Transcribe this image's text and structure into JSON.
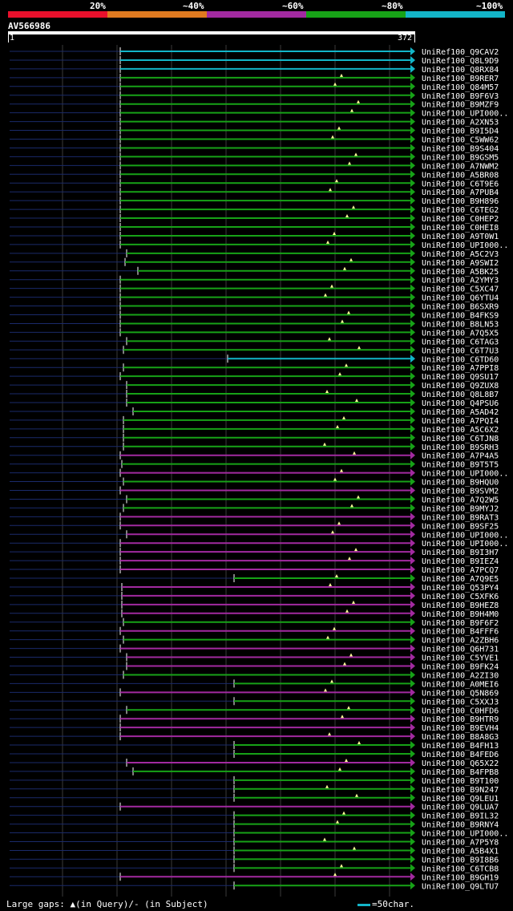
{
  "legend": [
    {
      "label": "20%",
      "color": "#e8102c"
    },
    {
      "label": "~40%",
      "color": "#e07a20"
    },
    {
      "label": "~60%",
      "color": "#a22aa0"
    },
    {
      "label": "~80%",
      "color": "#17a217"
    },
    {
      "label": "~100%",
      "color": "#13b5c8"
    }
  ],
  "query": {
    "name": "AV566986",
    "start": "1",
    "end": "372"
  },
  "colors": {
    "teal": "#13b5c8",
    "green": "#17a217",
    "purple": "#a22aa0",
    "navy": "#1a2a6a",
    "tri": "#ffff99",
    "grid": "#3a3a3a"
  },
  "footer": {
    "gaps_text": "Large gaps: ▲(in Query)/- (in Subject)",
    "scale_text": "=50char."
  },
  "hits": [
    {
      "name": "UniRef100_Q9CAV2",
      "color": "teal"
    },
    {
      "name": "UniRef100_Q8L9D9",
      "color": "teal"
    },
    {
      "name": "UniRef100_Q8RX84",
      "color": "teal"
    },
    {
      "name": "UniRef100_B9RER7",
      "color": "green"
    },
    {
      "name": "UniRef100_Q84M57",
      "color": "green"
    },
    {
      "name": "UniRef100_B9F6V3",
      "color": "green"
    },
    {
      "name": "UniRef100_B9MZF9",
      "color": "green"
    },
    {
      "name": "UniRef100_UPI000..",
      "color": "green"
    },
    {
      "name": "UniRef100_A2XN53",
      "color": "green"
    },
    {
      "name": "UniRef100_B9I5D4",
      "color": "green"
    },
    {
      "name": "UniRef100_C5WW62",
      "color": "green"
    },
    {
      "name": "UniRef100_B9S404",
      "color": "green"
    },
    {
      "name": "UniRef100_B9GSM5",
      "color": "green"
    },
    {
      "name": "UniRef100_A7NWM2",
      "color": "green"
    },
    {
      "name": "UniRef100_A5BR08",
      "color": "green"
    },
    {
      "name": "UniRef100_C6T9E6",
      "color": "green"
    },
    {
      "name": "UniRef100_A7PUB4",
      "color": "green"
    },
    {
      "name": "UniRef100_B9H896",
      "color": "green"
    },
    {
      "name": "UniRef100_C6TEG2",
      "color": "green"
    },
    {
      "name": "UniRef100_C0HEP2",
      "color": "green"
    },
    {
      "name": "UniRef100_C0HEI8",
      "color": "green"
    },
    {
      "name": "UniRef100_A9T0W1",
      "color": "green"
    },
    {
      "name": "UniRef100_UPI000..",
      "color": "green"
    },
    {
      "name": "UniRef100_A5C2V3",
      "color": "green"
    },
    {
      "name": "UniRef100_A9SWI2",
      "color": "green"
    },
    {
      "name": "UniRef100_A5BK25",
      "color": "green"
    },
    {
      "name": "UniRef100_A2YMY3",
      "color": "green"
    },
    {
      "name": "UniRef100_C5XC47",
      "color": "green"
    },
    {
      "name": "UniRef100_Q6YTU4",
      "color": "green"
    },
    {
      "name": "UniRef100_B6SXR9",
      "color": "green"
    },
    {
      "name": "UniRef100_B4FKS9",
      "color": "green"
    },
    {
      "name": "UniRef100_B8LN53",
      "color": "green"
    },
    {
      "name": "UniRef100_A7Q5X5",
      "color": "green"
    },
    {
      "name": "UniRef100_C6TAG3",
      "color": "green"
    },
    {
      "name": "UniRef100_C6T7U3",
      "color": "green"
    },
    {
      "name": "UniRef100_C6TD60",
      "color": "teal"
    },
    {
      "name": "UniRef100_A7PPI8",
      "color": "green"
    },
    {
      "name": "UniRef100_Q9SU17",
      "color": "green"
    },
    {
      "name": "UniRef100_Q9ZUX8",
      "color": "green"
    },
    {
      "name": "UniRef100_Q8L8B7",
      "color": "green"
    },
    {
      "name": "UniRef100_Q4PSU6",
      "color": "green"
    },
    {
      "name": "UniRef100_A5AD42",
      "color": "green"
    },
    {
      "name": "UniRef100_A7PQI4",
      "color": "green"
    },
    {
      "name": "UniRef100_A5C6X2",
      "color": "green"
    },
    {
      "name": "UniRef100_C6TJN8",
      "color": "green"
    },
    {
      "name": "UniRef100_B9SRH3",
      "color": "green"
    },
    {
      "name": "UniRef100_A7P4A5",
      "color": "purple"
    },
    {
      "name": "UniRef100_B9T5T5",
      "color": "green"
    },
    {
      "name": "UniRef100_UPI000..",
      "color": "purple"
    },
    {
      "name": "UniRef100_B9HQU0",
      "color": "green"
    },
    {
      "name": "UniRef100_B9SVM2",
      "color": "purple"
    },
    {
      "name": "UniRef100_A7Q2W5",
      "color": "green"
    },
    {
      "name": "UniRef100_B9MYJ2",
      "color": "green"
    },
    {
      "name": "UniRef100_B9RAT3",
      "color": "purple"
    },
    {
      "name": "UniRef100_B9SF25",
      "color": "purple"
    },
    {
      "name": "UniRef100_UPI000..",
      "color": "purple"
    },
    {
      "name": "UniRef100_UPI000..",
      "color": "purple"
    },
    {
      "name": "UniRef100_B9I3H7",
      "color": "purple"
    },
    {
      "name": "UniRef100_B9IEZ4",
      "color": "purple"
    },
    {
      "name": "UniRef100_A7PCQ7",
      "color": "purple"
    },
    {
      "name": "UniRef100_A7Q9E5",
      "color": "green"
    },
    {
      "name": "UniRef100_Q53PY4",
      "color": "purple"
    },
    {
      "name": "UniRef100_C5XFK6",
      "color": "purple"
    },
    {
      "name": "UniRef100_B9HEZ8",
      "color": "purple"
    },
    {
      "name": "UniRef100_B9H4M0",
      "color": "purple"
    },
    {
      "name": "UniRef100_B9F6F2",
      "color": "green"
    },
    {
      "name": "UniRef100_B4FFF6",
      "color": "purple"
    },
    {
      "name": "UniRef100_A2ZBH6",
      "color": "green"
    },
    {
      "name": "UniRef100_Q6H731",
      "color": "purple"
    },
    {
      "name": "UniRef100_C5YVE1",
      "color": "purple"
    },
    {
      "name": "UniRef100_B9FK24",
      "color": "purple"
    },
    {
      "name": "UniRef100_A2ZI30",
      "color": "green"
    },
    {
      "name": "UniRef100_A0MEI6",
      "color": "green"
    },
    {
      "name": "UniRef100_Q5N869",
      "color": "purple"
    },
    {
      "name": "UniRef100_C5XXJ3",
      "color": "green"
    },
    {
      "name": "UniRef100_C0HFD6",
      "color": "green"
    },
    {
      "name": "UniRef100_B9HTR9",
      "color": "purple"
    },
    {
      "name": "UniRef100_B9EVH4",
      "color": "purple"
    },
    {
      "name": "UniRef100_B8A8G3",
      "color": "purple"
    },
    {
      "name": "UniRef100_B4FH13",
      "color": "green"
    },
    {
      "name": "UniRef100_B4FED6",
      "color": "green"
    },
    {
      "name": "UniRef100_Q65X22",
      "color": "purple"
    },
    {
      "name": "UniRef100_B4FPB8",
      "color": "green"
    },
    {
      "name": "UniRef100_B9T100",
      "color": "green"
    },
    {
      "name": "UniRef100_B9N247",
      "color": "green"
    },
    {
      "name": "UniRef100_Q9LEU1",
      "color": "green"
    },
    {
      "name": "UniRef100_Q9LUA7",
      "color": "purple"
    },
    {
      "name": "UniRef100_B9IL32",
      "color": "green"
    },
    {
      "name": "UniRef100_B9RNY4",
      "color": "green"
    },
    {
      "name": "UniRef100_UPI000..",
      "color": "green"
    },
    {
      "name": "UniRef100_A7P5Y8",
      "color": "green"
    },
    {
      "name": "UniRef100_A5B4X1",
      "color": "green"
    },
    {
      "name": "UniRef100_B9I8B6",
      "color": "green"
    },
    {
      "name": "UniRef100_C6TCB8",
      "color": "green"
    },
    {
      "name": "UniRef100_B9GH19",
      "color": "purple"
    },
    {
      "name": "UniRef100_Q9LTU7",
      "color": "green"
    }
  ]
}
